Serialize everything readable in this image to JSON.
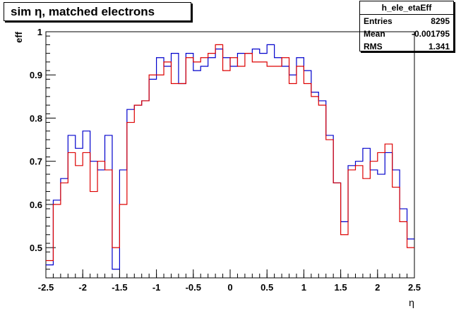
{
  "title": "sim η,  matched electrons",
  "stats": {
    "name": "h_ele_etaEff",
    "rows": [
      {
        "key": "Entries",
        "value": "8295"
      },
      {
        "key": "Mean",
        "value": "-0.001795"
      },
      {
        "key": "RMS",
        "value": "1.341"
      }
    ]
  },
  "chart_data": {
    "type": "line",
    "title": "sim η,  matched electrons",
    "xlabel": "η",
    "ylabel": "eff",
    "xlim": [
      -2.5,
      2.5
    ],
    "ylim": [
      0.43,
      1.0
    ],
    "x_ticks": [
      -2.5,
      -2,
      -1.5,
      -1,
      -0.5,
      0,
      0.5,
      1,
      1.5,
      2,
      2.5
    ],
    "x_tick_labels": [
      "-2.5",
      "-2",
      "-1.5",
      "-1",
      "-0.5",
      "0",
      "0.5",
      "1",
      "1.5",
      "2",
      "2.5"
    ],
    "y_ticks": [
      0.5,
      0.6,
      0.7,
      0.8,
      0.9,
      1.0
    ],
    "y_tick_labels": [
      "0.5",
      "0.6",
      "0.7",
      "0.8",
      "0.9",
      "1"
    ],
    "grid": false,
    "bins": 50,
    "series": [
      {
        "color": "#0000cc",
        "values": [
          0.46,
          0.61,
          0.66,
          0.76,
          0.73,
          0.77,
          0.7,
          0.68,
          0.76,
          0.45,
          0.68,
          0.82,
          0.83,
          0.84,
          0.89,
          0.94,
          0.92,
          0.95,
          0.88,
          0.95,
          0.91,
          0.92,
          0.94,
          0.96,
          0.94,
          0.92,
          0.95,
          0.95,
          0.96,
          0.95,
          0.97,
          0.94,
          0.92,
          0.9,
          0.94,
          0.91,
          0.86,
          0.84,
          0.76,
          0.65,
          0.56,
          0.69,
          0.7,
          0.73,
          0.68,
          0.67,
          0.72,
          0.68,
          0.59,
          0.52
        ]
      },
      {
        "color": "#dd0000",
        "values": [
          0.47,
          0.6,
          0.65,
          0.72,
          0.69,
          0.72,
          0.63,
          0.7,
          0.68,
          0.5,
          0.6,
          0.79,
          0.83,
          0.84,
          0.9,
          0.9,
          0.93,
          0.88,
          0.88,
          0.94,
          0.93,
          0.94,
          0.95,
          0.97,
          0.91,
          0.94,
          0.92,
          0.95,
          0.93,
          0.93,
          0.92,
          0.92,
          0.94,
          0.88,
          0.92,
          0.88,
          0.85,
          0.83,
          0.75,
          0.65,
          0.53,
          0.68,
          0.69,
          0.66,
          0.7,
          0.72,
          0.74,
          0.64,
          0.56,
          0.5
        ]
      }
    ]
  }
}
